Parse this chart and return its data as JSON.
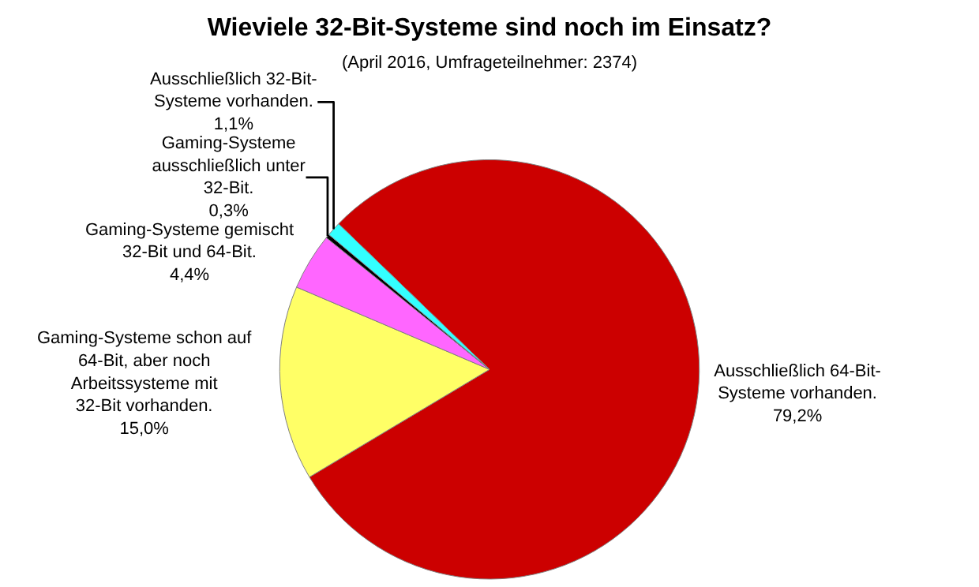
{
  "chart_data": {
    "type": "pie",
    "title": "Wieviele 32-Bit-Systeme sind noch im Einsatz?",
    "subtitle": "(April 2016, Umfrageteilnehmer: 2374)",
    "categories": [
      "Ausschließlich 64-Bit-Systeme vorhanden.",
      "Gaming-Systeme schon auf 64-Bit, aber noch Arbeitssysteme mit 32-Bit vorhanden.",
      "Gaming-Systeme gemischt 32-Bit und 64-Bit.",
      "Gaming-Systeme ausschließlich unter 32-Bit.",
      "Ausschließlich 32-Bit-Systeme vorhanden."
    ],
    "values": [
      79.2,
      15.0,
      4.4,
      0.3,
      1.1
    ],
    "value_labels": [
      "79,2%",
      "15,0%",
      "4,4%",
      "0,3%",
      "1,1%"
    ],
    "colors": [
      "#cc0000",
      "#ffff66",
      "#ff66ff",
      "#000000",
      "#33ffff"
    ],
    "legend": false
  }
}
